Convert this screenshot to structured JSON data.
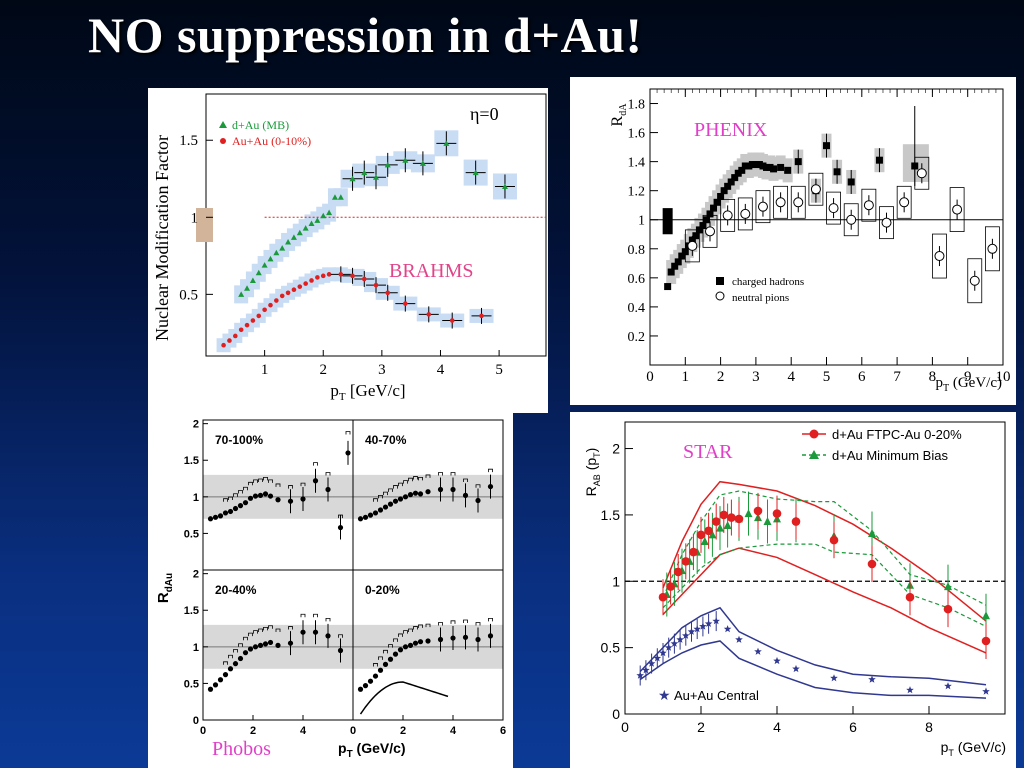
{
  "slide": {
    "title": "NO suppression in d+Au!"
  },
  "colors": {
    "brahms_label": "#e0458a",
    "phenix_label": "#e040c8",
    "star_label": "#e040c8",
    "phobos_label": "#e040c8",
    "green": "#1a9a3a",
    "red": "#e02020",
    "blue_band": "#c8dcf4",
    "star_blue": "#303890"
  },
  "chart_data": [
    {
      "id": "brahms",
      "type": "scatter",
      "label": "BRAHMS",
      "annotation": "η=0",
      "xlabel_main": "p",
      "xlabel_sub": "T",
      "xlabel_rest": " [GeV/c]",
      "ylabel": "Nuclear Modification Factor",
      "xlim": [
        0,
        5.8
      ],
      "ylim": [
        0.1,
        1.8
      ],
      "xticks": [
        1,
        2,
        3,
        4,
        5
      ],
      "yticks": [
        0.5,
        1,
        1.5
      ],
      "ytick_labels": [
        "0.5",
        "1",
        "1.5"
      ],
      "reference_line": 1,
      "series": [
        {
          "name": "d+Au (MB)",
          "marker": "triangle",
          "color": "#1a9a3a",
          "x": [
            0.6,
            0.7,
            0.8,
            0.9,
            1.0,
            1.1,
            1.2,
            1.3,
            1.4,
            1.5,
            1.6,
            1.7,
            1.8,
            1.9,
            2.0,
            2.1,
            2.2,
            2.3,
            2.5,
            2.7,
            2.9,
            3.1,
            3.4,
            3.7,
            4.1,
            4.6,
            5.1
          ],
          "y": [
            0.5,
            0.54,
            0.59,
            0.64,
            0.69,
            0.73,
            0.77,
            0.8,
            0.84,
            0.87,
            0.9,
            0.93,
            0.96,
            0.98,
            1.01,
            1.03,
            1.13,
            1.13,
            1.25,
            1.29,
            1.26,
            1.34,
            1.37,
            1.35,
            1.48,
            1.29,
            1.2
          ]
        },
        {
          "name": "Au+Au (0-10%)",
          "marker": "circle",
          "color": "#e02020",
          "x": [
            0.3,
            0.4,
            0.5,
            0.6,
            0.7,
            0.8,
            0.9,
            1.0,
            1.1,
            1.2,
            1.3,
            1.4,
            1.5,
            1.6,
            1.7,
            1.8,
            1.9,
            2.0,
            2.1,
            2.3,
            2.5,
            2.7,
            2.9,
            3.1,
            3.4,
            3.8,
            4.2,
            4.7
          ],
          "y": [
            0.17,
            0.2,
            0.23,
            0.27,
            0.3,
            0.33,
            0.36,
            0.4,
            0.43,
            0.46,
            0.49,
            0.51,
            0.53,
            0.55,
            0.57,
            0.59,
            0.61,
            0.62,
            0.63,
            0.63,
            0.62,
            0.6,
            0.56,
            0.51,
            0.44,
            0.37,
            0.33,
            0.36
          ]
        }
      ]
    },
    {
      "id": "phenix",
      "type": "scatter",
      "label": "PHENIX",
      "ylabel_main": "R",
      "ylabel_sub": "dA",
      "xlabel_main": "p",
      "xlabel_sub": "T",
      "xlabel_rest": " (GeV/c)",
      "xlim": [
        0,
        10
      ],
      "ylim": [
        0,
        1.9
      ],
      "xticks": [
        0,
        1,
        2,
        3,
        4,
        5,
        6,
        7,
        8,
        9,
        10
      ],
      "xtick_labels": [
        "0",
        "1",
        "2",
        "3",
        "4",
        "5",
        "6",
        "7",
        "8",
        "9",
        "10"
      ],
      "yticks": [
        0.2,
        0.4,
        0.6,
        0.8,
        1.0,
        1.2,
        1.4,
        1.6,
        1.8
      ],
      "ytick_labels": [
        "0.2",
        "0.4",
        "0.6",
        "0.8",
        "1",
        "1.2",
        "1.4",
        "1.6",
        "1.8"
      ],
      "reference_line": 1,
      "series": [
        {
          "name": "charged hadrons",
          "marker": "square",
          "x": [
            0.5,
            0.6,
            0.7,
            0.8,
            0.9,
            1.0,
            1.1,
            1.2,
            1.3,
            1.4,
            1.5,
            1.6,
            1.7,
            1.8,
            1.9,
            2.0,
            2.1,
            2.2,
            2.3,
            2.4,
            2.5,
            2.6,
            2.7,
            2.8,
            2.9,
            3.0,
            3.1,
            3.2,
            3.3,
            3.4,
            3.5,
            3.7,
            3.9,
            4.2,
            4.7,
            5.0,
            5.3,
            5.7,
            6.5,
            7.5
          ],
          "y": [
            0.54,
            0.64,
            0.68,
            0.71,
            0.75,
            0.78,
            0.82,
            0.86,
            0.89,
            0.93,
            0.96,
            1.0,
            1.04,
            1.08,
            1.12,
            1.16,
            1.2,
            1.23,
            1.26,
            1.29,
            1.32,
            1.34,
            1.37,
            1.37,
            1.38,
            1.38,
            1.38,
            1.37,
            1.36,
            1.36,
            1.35,
            1.36,
            1.34,
            1.4,
            1.2,
            1.51,
            1.33,
            1.26,
            1.41,
            1.37
          ]
        },
        {
          "name": "neutral pions",
          "marker": "open-circle",
          "x": [
            1.2,
            1.7,
            2.2,
            2.7,
            3.2,
            3.7,
            4.2,
            4.7,
            5.2,
            5.7,
            6.2,
            6.7,
            7.2,
            7.7,
            8.2,
            8.7,
            9.2,
            9.7
          ],
          "y": [
            0.82,
            0.92,
            1.03,
            1.04,
            1.09,
            1.12,
            1.12,
            1.21,
            1.08,
            1.0,
            1.1,
            0.98,
            1.12,
            1.32,
            0.75,
            1.07,
            0.58,
            0.8
          ]
        }
      ]
    },
    {
      "id": "phobos",
      "type": "scatter",
      "label": "Phobos",
      "ylabel_main": "R",
      "ylabel_sub": "dAu",
      "xlabel_main": "p",
      "xlabel_sub": "T",
      "xlabel_rest": " (GeV/c)",
      "xticks": [
        0,
        2,
        4,
        6
      ],
      "xtick_labels": [
        "0",
        "2",
        "4",
        "6"
      ],
      "yticks_top": [
        0.5,
        1,
        1.5,
        2
      ],
      "yticks_top_labels": [
        "0.5",
        "1",
        "1.5",
        "2"
      ],
      "yticks_bottom": [
        0,
        0.5,
        1,
        1.5,
        2
      ],
      "yticks_bottom_labels": [
        "0",
        "0.5",
        "1",
        "1.5",
        "2"
      ],
      "panels": [
        {
          "label": "70-100%",
          "x": [
            0.3,
            0.5,
            0.7,
            0.9,
            1.1,
            1.3,
            1.5,
            1.7,
            1.9,
            2.1,
            2.3,
            2.5,
            2.7,
            3.0,
            3.5,
            4.0,
            4.5,
            5.0,
            5.5,
            5.8
          ],
          "y": [
            0.7,
            0.72,
            0.74,
            0.78,
            0.8,
            0.84,
            0.88,
            0.92,
            0.98,
            1.01,
            1.02,
            1.04,
            1.01,
            0.96,
            0.94,
            0.97,
            1.22,
            1.1,
            0.58,
            1.6
          ]
        },
        {
          "label": "40-70%",
          "x": [
            0.3,
            0.5,
            0.7,
            0.9,
            1.1,
            1.3,
            1.5,
            1.7,
            1.9,
            2.1,
            2.3,
            2.5,
            2.7,
            3.0,
            3.5,
            4.0,
            4.5,
            5.0,
            5.5
          ],
          "y": [
            0.7,
            0.72,
            0.75,
            0.78,
            0.82,
            0.86,
            0.9,
            0.94,
            0.97,
            1.0,
            1.03,
            1.05,
            1.04,
            1.07,
            1.1,
            1.1,
            1.02,
            0.95,
            1.14
          ]
        },
        {
          "label": "20-40%",
          "x": [
            0.3,
            0.5,
            0.7,
            0.9,
            1.1,
            1.3,
            1.5,
            1.7,
            1.9,
            2.1,
            2.3,
            2.5,
            2.7,
            3.0,
            3.5,
            4.0,
            4.5,
            5.0,
            5.5
          ],
          "y": [
            0.42,
            0.48,
            0.55,
            0.62,
            0.7,
            0.77,
            0.84,
            0.92,
            0.97,
            1.0,
            1.02,
            1.04,
            1.06,
            1.02,
            1.05,
            1.2,
            1.2,
            1.15,
            0.95
          ]
        },
        {
          "label": "0-20%",
          "x": [
            0.3,
            0.5,
            0.7,
            0.9,
            1.1,
            1.3,
            1.5,
            1.7,
            1.9,
            2.1,
            2.3,
            2.5,
            2.7,
            3.0,
            3.5,
            4.0,
            4.5,
            5.0,
            5.5
          ],
          "y": [
            0.42,
            0.47,
            0.53,
            0.6,
            0.68,
            0.76,
            0.83,
            0.9,
            0.96,
            1.0,
            1.02,
            1.05,
            1.07,
            1.08,
            1.1,
            1.12,
            1.13,
            1.1,
            1.15
          ]
        }
      ]
    },
    {
      "id": "star",
      "type": "scatter",
      "label": "STAR",
      "ylabel_main": "R",
      "ylabel_sub": "AB",
      "ylabel_rest": " (p",
      "ylabel_sub2": "T",
      "ylabel_end": ")",
      "xlabel_main": "p",
      "xlabel_sub": "T",
      "xlabel_rest": " (GeV/c)",
      "xlim": [
        0,
        10
      ],
      "ylim": [
        0,
        2.2
      ],
      "xticks": [
        0,
        2,
        4,
        6,
        8
      ],
      "xtick_labels": [
        "0",
        "2",
        "4",
        "6",
        "8"
      ],
      "yticks": [
        0,
        0.5,
        1,
        1.5,
        2
      ],
      "ytick_labels": [
        "0",
        "0.5",
        "1",
        "1.5",
        "2"
      ],
      "reference_line": 1,
      "series": [
        {
          "name": "d+Au FTPC-Au 0-20%",
          "marker": "circle",
          "color": "#e02020",
          "x": [
            1.0,
            1.2,
            1.4,
            1.6,
            1.8,
            2.0,
            2.2,
            2.4,
            2.6,
            2.8,
            3.0,
            3.5,
            4.0,
            4.5,
            5.5,
            6.5,
            7.5,
            8.5,
            9.5
          ],
          "y": [
            0.88,
            0.96,
            1.07,
            1.15,
            1.22,
            1.35,
            1.38,
            1.45,
            1.5,
            1.48,
            1.47,
            1.53,
            1.51,
            1.45,
            1.31,
            1.13,
            0.88,
            0.79,
            0.55
          ]
        },
        {
          "name": "d+Au Minimum Bias",
          "marker": "triangle",
          "color": "#1a9a3a",
          "x": [
            1.1,
            1.3,
            1.5,
            1.7,
            1.9,
            2.1,
            2.3,
            2.5,
            2.7,
            3.0,
            3.25,
            3.5,
            3.75,
            4.0,
            4.5,
            5.5,
            6.5,
            7.5,
            8.5,
            9.5
          ],
          "y": [
            0.9,
            0.98,
            1.08,
            1.15,
            1.22,
            1.3,
            1.35,
            1.4,
            1.42,
            1.47,
            1.51,
            1.48,
            1.45,
            1.47,
            1.46,
            1.34,
            1.36,
            0.97,
            0.96,
            0.74
          ]
        },
        {
          "name": "Au+Au Central",
          "marker": "star",
          "color": "#303890",
          "x": [
            0.4,
            0.55,
            0.7,
            0.85,
            1.0,
            1.15,
            1.3,
            1.45,
            1.6,
            1.75,
            1.9,
            2.05,
            2.2,
            2.4,
            2.7,
            3.0,
            3.5,
            4.0,
            4.5,
            5.5,
            6.5,
            7.5,
            8.5,
            9.5
          ],
          "y": [
            0.29,
            0.33,
            0.38,
            0.42,
            0.46,
            0.5,
            0.53,
            0.56,
            0.59,
            0.62,
            0.64,
            0.66,
            0.68,
            0.7,
            0.64,
            0.56,
            0.47,
            0.4,
            0.34,
            0.27,
            0.26,
            0.18,
            0.21,
            0.17
          ]
        }
      ]
    }
  ]
}
